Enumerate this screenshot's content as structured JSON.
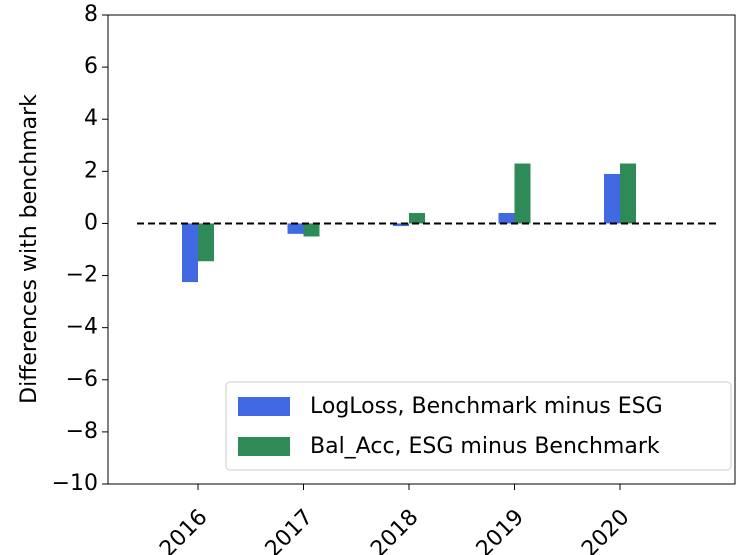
{
  "chart_data": {
    "type": "bar",
    "ylabel": "Differences with benchmark",
    "categories": [
      "2016",
      "2017",
      "2018",
      "2019",
      "2020"
    ],
    "series": [
      {
        "name": "LogLoss, Benchmark minus ESG",
        "color": "#4169e1",
        "values": [
          -2.25,
          -0.4,
          -0.1,
          0.4,
          1.9
        ]
      },
      {
        "name": "Bal_Acc, ESG minus Benchmark",
        "color": "#2e8b57",
        "values": [
          -1.45,
          -0.5,
          0.4,
          2.3,
          2.3
        ]
      }
    ],
    "ylim": [
      -10,
      8
    ],
    "yticks": [
      {
        "value": -10,
        "label": "−10"
      },
      {
        "value": -8,
        "label": "−8"
      },
      {
        "value": -6,
        "label": "−6"
      },
      {
        "value": -4,
        "label": "−4"
      },
      {
        "value": -2,
        "label": "−2"
      },
      0,
      2,
      4,
      6,
      8
    ],
    "legend": "lower right"
  }
}
